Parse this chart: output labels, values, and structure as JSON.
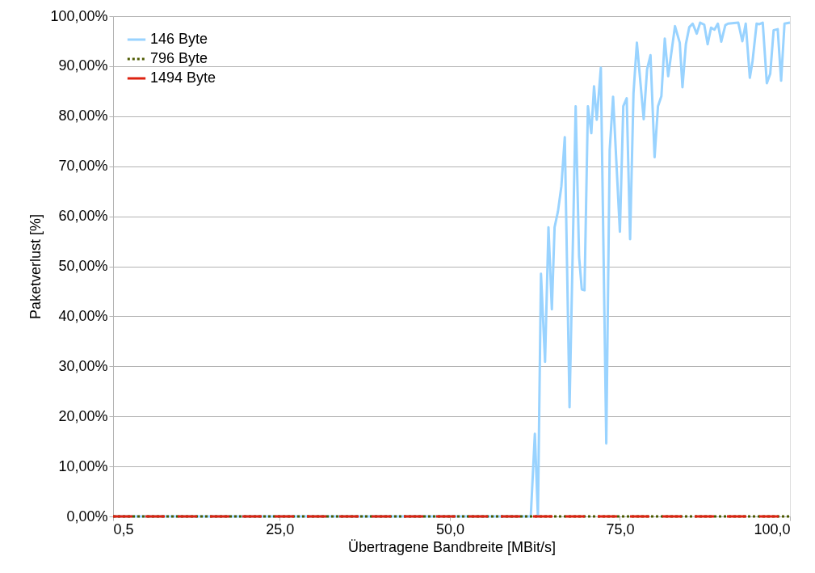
{
  "chart_data": {
    "type": "line",
    "xlabel": "Übertragene Bandbreite [MBit/s]",
    "ylabel": "Paketverlust [%]",
    "xlim": [
      0.5,
      100
    ],
    "xticks": [
      {
        "value": 0.5,
        "label": "0,5"
      },
      {
        "value": 25,
        "label": "25,0"
      },
      {
        "value": 50,
        "label": "50,0"
      },
      {
        "value": 75,
        "label": "75,0"
      },
      {
        "value": 100,
        "label": "100,0"
      }
    ],
    "ylim": [
      0,
      100
    ],
    "yticks": [
      {
        "value": 0,
        "label": "0,00%"
      },
      {
        "value": 10,
        "label": "10,00%"
      },
      {
        "value": 20,
        "label": "20,00%"
      },
      {
        "value": 30,
        "label": "30,00%"
      },
      {
        "value": 40,
        "label": "40,00%"
      },
      {
        "value": 50,
        "label": "50,00%"
      },
      {
        "value": 60,
        "label": "60,00%"
      },
      {
        "value": 70,
        "label": "70,00%"
      },
      {
        "value": 80,
        "label": "80,00%"
      },
      {
        "value": 90,
        "label": "90,00%"
      },
      {
        "value": 100,
        "label": "100,00%"
      }
    ],
    "grid": "y",
    "legend": "top left",
    "marker": "none",
    "series": [
      {
        "name": "146 Byte",
        "color": "#99d3ff",
        "line_style": "solid",
        "x": [
          0.5,
          61.9,
          62.5,
          62.95,
          63.4,
          64.0,
          64.5,
          65.0,
          65.4,
          65.9,
          66.4,
          66.9,
          67.6,
          68.5,
          69.0,
          69.4,
          69.8,
          70.3,
          70.8,
          71.2,
          71.6,
          72.2,
          73.0,
          73.5,
          74.0,
          75.0,
          75.5,
          76.0,
          76.5,
          77.0,
          77.5,
          78.5,
          79.0,
          79.5,
          80.1,
          80.6,
          81.1,
          81.6,
          82.1,
          83.1,
          83.8,
          84.2,
          84.7,
          85.2,
          85.7,
          86.3,
          86.8,
          87.4,
          87.9,
          88.4,
          88.9,
          89.4,
          89.9,
          90.5,
          90.9,
          92.4,
          93.0,
          93.5,
          94.1,
          94.5,
          95.1,
          95.5,
          96.0,
          96.6,
          97.1,
          97.6,
          98.2,
          98.7,
          99.2,
          100
        ],
        "values": [
          0,
          0,
          16.5,
          0,
          48.5,
          30.9,
          57.8,
          41.4,
          57.8,
          61,
          66,
          75.8,
          21.8,
          82,
          51.9,
          45.4,
          45.2,
          82,
          76.6,
          86,
          79.3,
          89.7,
          14.6,
          73.2,
          83.9,
          56.9,
          82,
          83.6,
          55.4,
          84.6,
          94.7,
          79.4,
          89.4,
          92.2,
          71.8,
          82,
          84,
          95.5,
          88,
          98,
          94.7,
          85.8,
          94.4,
          97.8,
          98.5,
          96.5,
          98.7,
          98.3,
          94.4,
          97.7,
          97.3,
          98.5,
          94.9,
          98.2,
          98.5,
          98.7,
          95,
          98.5,
          87.7,
          91,
          98.5,
          98.4,
          98.7,
          86.6,
          88.5,
          97.2,
          97.4,
          87.1,
          98.5,
          98.7
        ]
      },
      {
        "name": "796 Byte",
        "color": "#4d5a00",
        "line_style": "dotted",
        "x": [
          0.5,
          100
        ],
        "values": [
          0,
          0
        ]
      },
      {
        "name": "1494 Byte",
        "color": "#dd2211",
        "line_style": "dashed",
        "x": [
          0.5,
          100
        ],
        "values": [
          0,
          0
        ]
      }
    ]
  }
}
